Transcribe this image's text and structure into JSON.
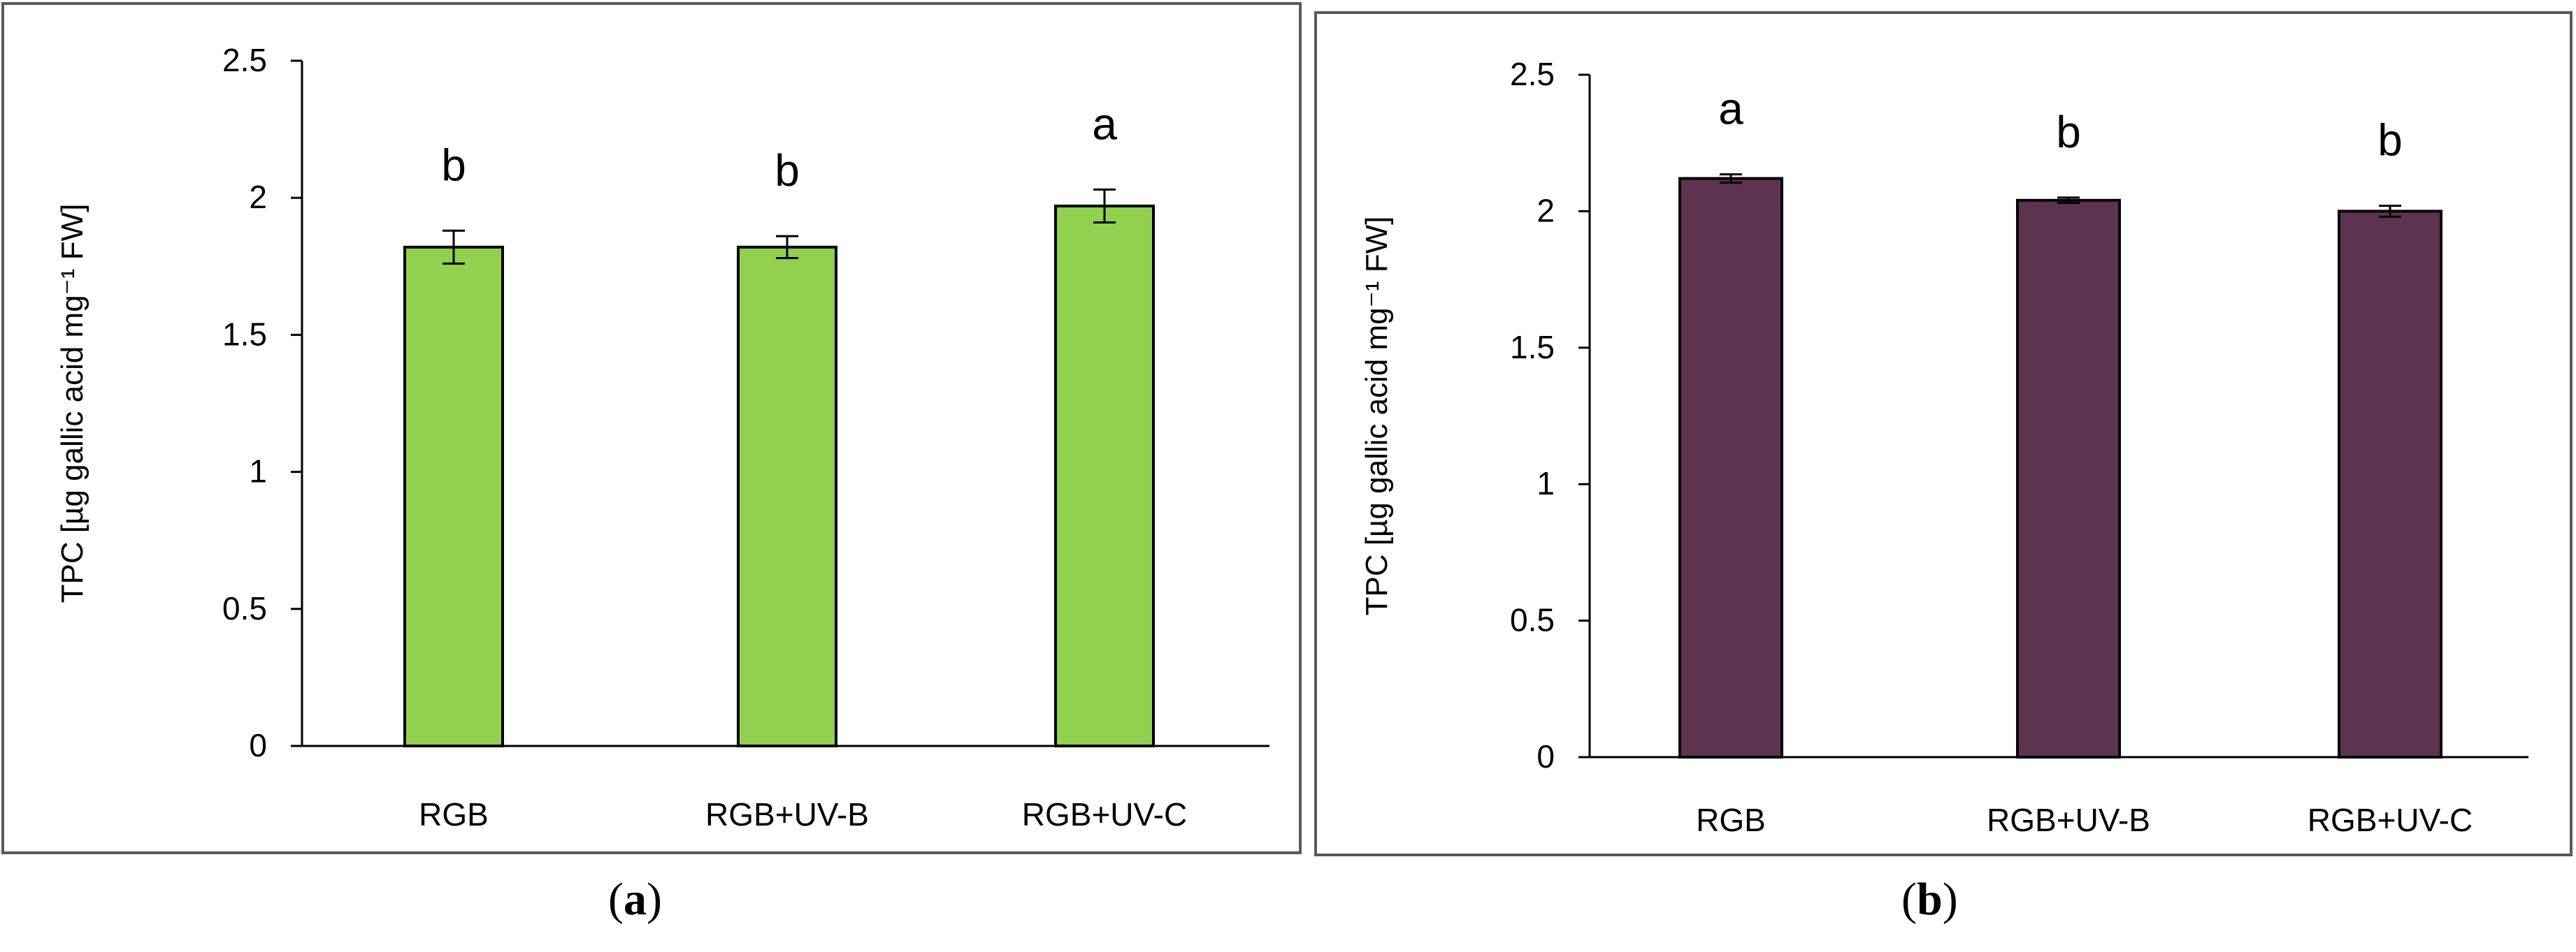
{
  "captions": [
    {
      "open": "(",
      "letter": "a",
      "close": ")"
    },
    {
      "open": "(",
      "letter": "b",
      "close": ")"
    }
  ],
  "chart_data": [
    {
      "type": "bar",
      "panel": "a",
      "ylabel": "TPC [µg gallic acid  mg⁻¹ FW]",
      "ylim": [
        0,
        2.5
      ],
      "yticks": [
        0,
        0.5,
        1,
        1.5,
        2,
        2.5
      ],
      "ytick_labels": [
        "0",
        "0.5",
        "1",
        "1.5",
        "2",
        "2.5"
      ],
      "categories": [
        "RGB",
        "RGB+UV-B",
        "RGB+UV-C"
      ],
      "values": [
        1.82,
        1.82,
        1.97
      ],
      "errors": [
        0.06,
        0.04,
        0.06
      ],
      "significance_letters": [
        "b",
        "b",
        "a"
      ],
      "bar_color": "#92d050",
      "grid": false
    },
    {
      "type": "bar",
      "panel": "b",
      "ylabel": "TPC [µg gallic acid mg⁻¹ FW]",
      "ylim": [
        0,
        2.5
      ],
      "yticks": [
        0,
        0.5,
        1,
        1.5,
        2,
        2.5
      ],
      "ytick_labels": [
        "0",
        "0.5",
        "1",
        "1.5",
        "2",
        "2.5"
      ],
      "categories": [
        "RGB",
        "RGB+UV-B",
        "RGB+UV-C"
      ],
      "values": [
        2.12,
        2.04,
        2.0
      ],
      "errors": [
        0.015,
        0.01,
        0.02
      ],
      "significance_letters": [
        "a",
        "b",
        "b"
      ],
      "bar_color": "#5e3352",
      "grid": false
    }
  ]
}
